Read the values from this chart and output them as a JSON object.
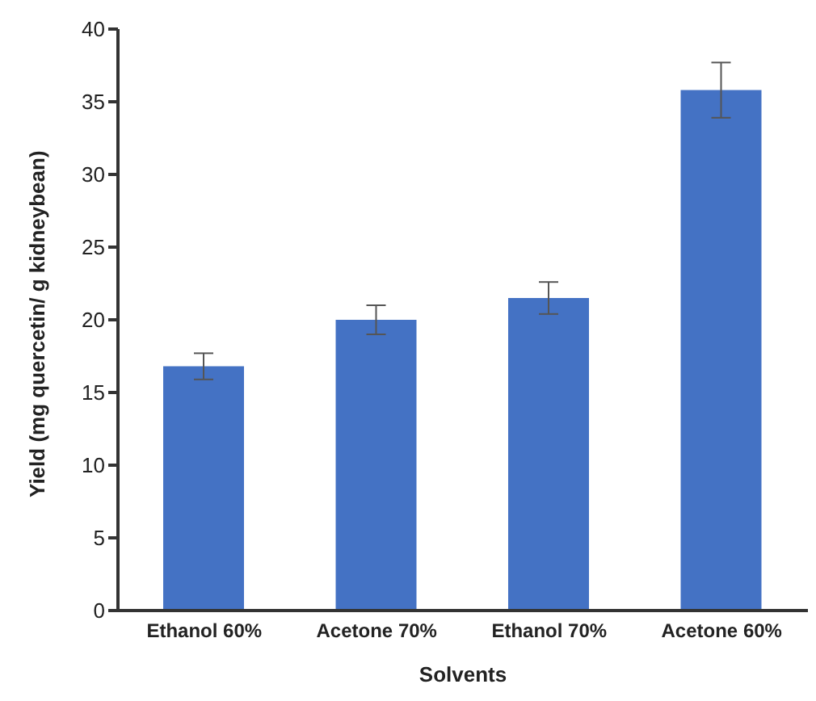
{
  "chart_data": {
    "type": "bar",
    "xlabel": "Solvents",
    "ylabel": "Yield (mg quercetin/ g kidneybean)",
    "categories": [
      "Ethanol 60%",
      "Acetone 70%",
      "Ethanol 70%",
      "Acetone 60%"
    ],
    "values": [
      16.8,
      20.0,
      21.5,
      35.8
    ],
    "errors": [
      0.9,
      1.0,
      1.1,
      1.9
    ],
    "color": "#4472c4",
    "ylim": [
      0,
      40
    ],
    "yticks": [
      0,
      5,
      10,
      15,
      20,
      25,
      30,
      35,
      40
    ],
    "grid": false
  }
}
